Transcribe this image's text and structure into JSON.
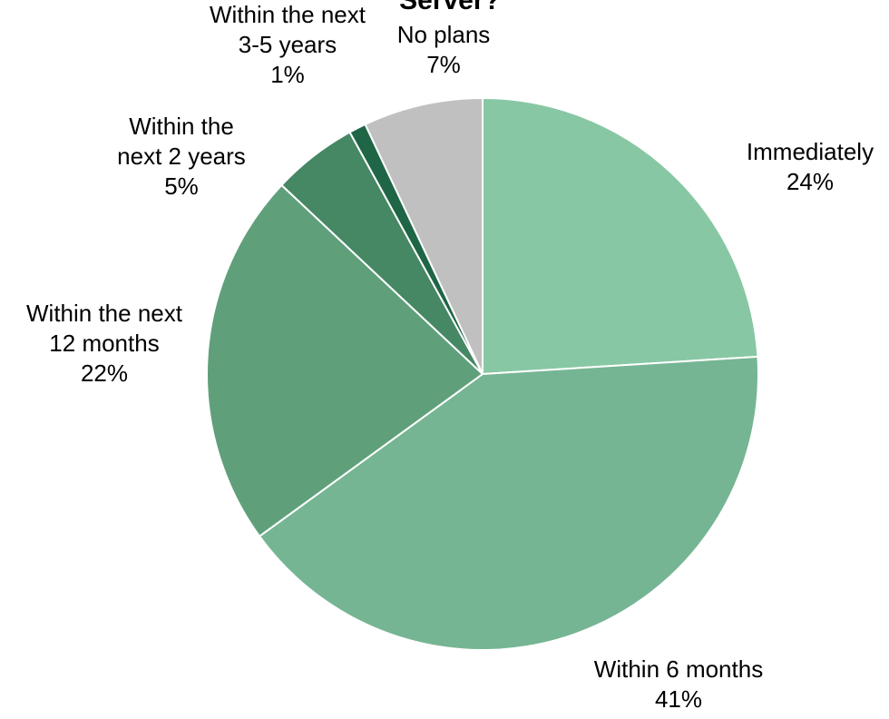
{
  "chart_data": {
    "type": "pie",
    "title": "Server?",
    "start": "12 o'clock",
    "direction": "clockwise",
    "categories": [
      "Immediately",
      "Within 6 months",
      "Within the next 12 months",
      "Within the next 2 years",
      "Within the next 3-5 years",
      "No plans"
    ],
    "values": [
      24,
      41,
      22,
      5,
      1,
      7
    ],
    "slices": [
      {
        "label": "Immediately",
        "value": 24,
        "value_label": "24%",
        "label_lines": [
          "Immediately",
          "24%"
        ],
        "color": "#88c7a4"
      },
      {
        "label": "Within 6 months",
        "value": 41,
        "value_label": "41%",
        "label_lines": [
          "Within 6 months",
          "41%"
        ],
        "color": "#75b593"
      },
      {
        "label": "Within the next 12 months",
        "value": 22,
        "value_label": "22%",
        "label_lines": [
          "Within the next",
          "12 months",
          "22%"
        ],
        "color": "#5fa07b"
      },
      {
        "label": "Within the next 2 years",
        "value": 5,
        "value_label": "5%",
        "label_lines": [
          "Within the",
          "next 2 years",
          "5%"
        ],
        "color": "#468764"
      },
      {
        "label": "Within the next 3-5 years",
        "value": 1,
        "value_label": "1%",
        "label_lines": [
          "Within the next",
          "3-5 years",
          "1%"
        ],
        "color": "#1e6646"
      },
      {
        "label": "No plans",
        "value": 7,
        "value_label": "7%",
        "label_lines": [
          "No plans",
          "7%"
        ],
        "color": "#c0c0c0"
      }
    ]
  }
}
